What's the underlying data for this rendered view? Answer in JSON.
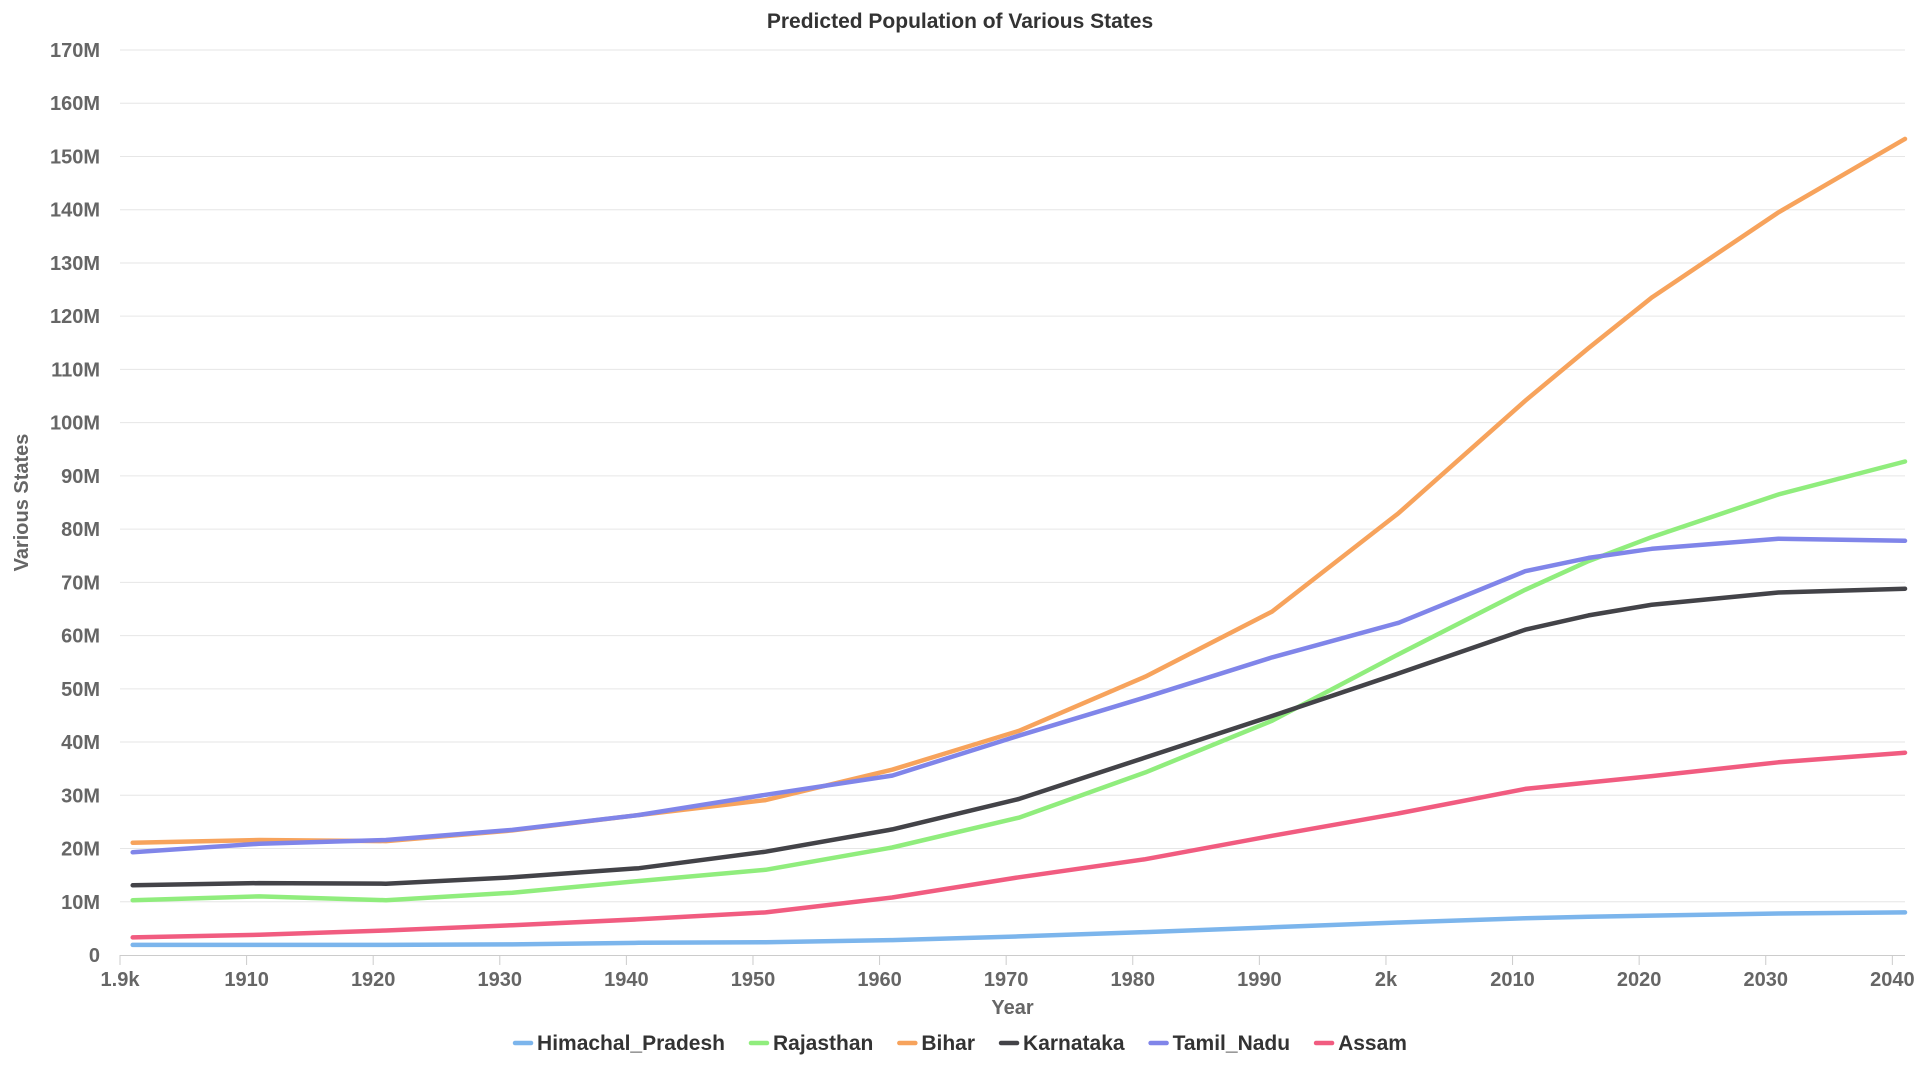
{
  "chart_data": {
    "type": "line",
    "title": "Predicted Population of Various States",
    "xlabel": "Year",
    "ylabel": "Various States",
    "xlim": [
      1900,
      2041
    ],
    "ylim": [
      0,
      170000000
    ],
    "x_ticks": [
      1900,
      1910,
      1920,
      1930,
      1940,
      1950,
      1960,
      1970,
      1980,
      1990,
      2000,
      2010,
      2020,
      2030,
      2040
    ],
    "x_tick_labels": [
      "1.9k",
      "1910",
      "1920",
      "1930",
      "1940",
      "1950",
      "1960",
      "1970",
      "1980",
      "1990",
      "2k",
      "2010",
      "2020",
      "2030",
      "2040"
    ],
    "y_ticks": [
      0,
      10000000,
      20000000,
      30000000,
      40000000,
      50000000,
      60000000,
      70000000,
      80000000,
      90000000,
      100000000,
      110000000,
      120000000,
      130000000,
      140000000,
      150000000,
      160000000,
      170000000
    ],
    "y_tick_labels": [
      "0",
      "10M",
      "20M",
      "30M",
      "40M",
      "50M",
      "60M",
      "70M",
      "80M",
      "90M",
      "100M",
      "110M",
      "120M",
      "130M",
      "140M",
      "150M",
      "160M",
      "170M"
    ],
    "grid": true,
    "legend_position": "bottom",
    "series": [
      {
        "name": "Himachal_Pradesh",
        "color": "#7cb5ec",
        "points": [
          [
            1901,
            1900000
          ],
          [
            1911,
            1900000
          ],
          [
            1921,
            1900000
          ],
          [
            1931,
            2000000
          ],
          [
            1941,
            2300000
          ],
          [
            1951,
            2400000
          ],
          [
            1961,
            2800000
          ],
          [
            1971,
            3500000
          ],
          [
            1981,
            4300000
          ],
          [
            1991,
            5200000
          ],
          [
            2001,
            6100000
          ],
          [
            2011,
            6900000
          ],
          [
            2016,
            7200000
          ],
          [
            2021,
            7400000
          ],
          [
            2031,
            7800000
          ],
          [
            2041,
            8000000
          ]
        ]
      },
      {
        "name": "Rajasthan",
        "color": "#90ed7d",
        "points": [
          [
            1901,
            10300000
          ],
          [
            1911,
            11000000
          ],
          [
            1921,
            10300000
          ],
          [
            1931,
            11700000
          ],
          [
            1941,
            13900000
          ],
          [
            1951,
            16000000
          ],
          [
            1961,
            20200000
          ],
          [
            1971,
            25800000
          ],
          [
            1981,
            34300000
          ],
          [
            1991,
            44000000
          ],
          [
            2001,
            56500000
          ],
          [
            2011,
            68600000
          ],
          [
            2016,
            74000000
          ],
          [
            2021,
            78500000
          ],
          [
            2031,
            86500000
          ],
          [
            2041,
            92700000
          ]
        ]
      },
      {
        "name": "Bihar",
        "color": "#f7a35c",
        "points": [
          [
            1901,
            21100000
          ],
          [
            1911,
            21600000
          ],
          [
            1921,
            21400000
          ],
          [
            1931,
            23400000
          ],
          [
            1941,
            26300000
          ],
          [
            1951,
            29100000
          ],
          [
            1961,
            34800000
          ],
          [
            1971,
            42100000
          ],
          [
            1981,
            52300000
          ],
          [
            1991,
            64500000
          ],
          [
            2001,
            83000000
          ],
          [
            2011,
            104100000
          ],
          [
            2016,
            114000000
          ],
          [
            2021,
            123500000
          ],
          [
            2031,
            139500000
          ],
          [
            2041,
            153300000
          ]
        ]
      },
      {
        "name": "Karnataka",
        "color": "#434348",
        "points": [
          [
            1901,
            13100000
          ],
          [
            1911,
            13500000
          ],
          [
            1921,
            13400000
          ],
          [
            1931,
            14600000
          ],
          [
            1941,
            16300000
          ],
          [
            1951,
            19400000
          ],
          [
            1961,
            23600000
          ],
          [
            1971,
            29300000
          ],
          [
            1981,
            37100000
          ],
          [
            1991,
            44900000
          ],
          [
            2001,
            52900000
          ],
          [
            2011,
            61100000
          ],
          [
            2016,
            63800000
          ],
          [
            2021,
            65800000
          ],
          [
            2031,
            68100000
          ],
          [
            2041,
            68800000
          ]
        ]
      },
      {
        "name": "Tamil_Nadu",
        "color": "#8085e9",
        "points": [
          [
            1901,
            19300000
          ],
          [
            1911,
            20900000
          ],
          [
            1921,
            21600000
          ],
          [
            1931,
            23500000
          ],
          [
            1941,
            26300000
          ],
          [
            1951,
            30100000
          ],
          [
            1961,
            33700000
          ],
          [
            1971,
            41200000
          ],
          [
            1981,
            48400000
          ],
          [
            1991,
            55900000
          ],
          [
            2001,
            62400000
          ],
          [
            2011,
            72100000
          ],
          [
            2016,
            74600000
          ],
          [
            2021,
            76300000
          ],
          [
            2031,
            78200000
          ],
          [
            2041,
            77800000
          ]
        ]
      },
      {
        "name": "Assam",
        "color": "#f15c80",
        "points": [
          [
            1901,
            3300000
          ],
          [
            1911,
            3800000
          ],
          [
            1921,
            4600000
          ],
          [
            1931,
            5600000
          ],
          [
            1941,
            6700000
          ],
          [
            1951,
            8000000
          ],
          [
            1961,
            10800000
          ],
          [
            1971,
            14600000
          ],
          [
            1981,
            18000000
          ],
          [
            1991,
            22400000
          ],
          [
            2001,
            26600000
          ],
          [
            2011,
            31200000
          ],
          [
            2016,
            32400000
          ],
          [
            2021,
            33600000
          ],
          [
            2031,
            36200000
          ],
          [
            2041,
            38000000
          ]
        ]
      }
    ]
  }
}
